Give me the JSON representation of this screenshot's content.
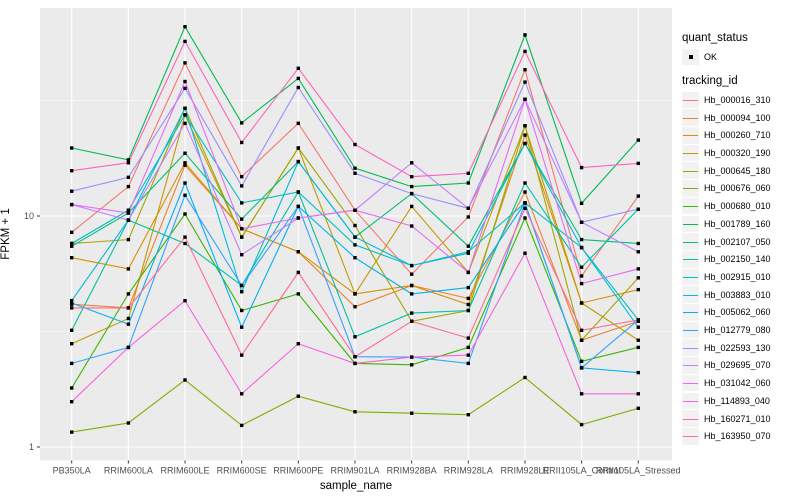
{
  "window": {
    "kind": "ggplot-line-chart"
  },
  "axes": {
    "x_title": "sample_name",
    "y_title": "FPKM + 1",
    "y_tick_labels": [
      "10",
      "1"
    ]
  },
  "legend": {
    "quant_status_title": "quant_status",
    "quant_status_items": [
      {
        "label": "OK",
        "marker": "black-square"
      }
    ],
    "tracking_title": "tracking_id"
  },
  "colors": {
    "panel_bg": "#EBEBEB",
    "grid": "#FFFFFF",
    "tick_mark": "#333333",
    "tick_label": "#4D4D4D",
    "point": "#000000",
    "legend_key_bg": "#F2F2F2"
  },
  "chart_data": {
    "type": "line",
    "xlabel": "sample_name",
    "ylabel": "FPKM + 1",
    "yscale": "log10",
    "ylim": [
      1,
      70
    ],
    "y_major_ticks": [
      10,
      1
    ],
    "y_minor_gridlines": [
      31.62,
      3.162
    ],
    "grid": "on",
    "legend_position": "right",
    "x_categories": [
      "PB350LA",
      "RRIM600LA",
      "RRIM600LE",
      "RRIM600SE",
      "RRIM600PE",
      "RRIM901LA",
      "RRIM928BA",
      "RRIM928LA",
      "RRIM928LE",
      "RRII105LA_Control",
      "RRII105LA_Stressed"
    ],
    "series": [
      {
        "name": "Hb_000016_310",
        "color": "#F8766D",
        "values": [
          8.5,
          13.4,
          46,
          14.8,
          25.2,
          10.6,
          5.6,
          9.9,
          43,
          5.5,
          12.2
        ]
      },
      {
        "name": "Hb_000094_100",
        "color": "#EA8331",
        "values": [
          4.15,
          4.0,
          16.6,
          8.8,
          7.0,
          4.05,
          5.0,
          4.4,
          12.7,
          2.9,
          3.5
        ]
      },
      {
        "name": "Hb_000260_710",
        "color": "#D89000",
        "values": [
          6.6,
          5.9,
          17.0,
          8.8,
          7.0,
          4.6,
          5.0,
          4.14,
          22.4,
          4.2,
          4.8
        ]
      },
      {
        "name": "Hb_000320_190",
        "color": "#C09B00",
        "values": [
          2.8,
          3.6,
          27.4,
          8.1,
          19.7,
          4.6,
          11.0,
          5.7,
          24.6,
          4.2,
          2.9
        ]
      },
      {
        "name": "Hb_000645_180",
        "color": "#A3A500",
        "values": [
          7.6,
          7.9,
          29.3,
          8.1,
          19.7,
          9.1,
          3.5,
          3.9,
          24.6,
          2.9,
          5.4
        ]
      },
      {
        "name": "Hb_000676_060",
        "color": "#7CAE00",
        "values": [
          1.16,
          1.27,
          1.95,
          1.24,
          1.66,
          1.42,
          1.4,
          1.38,
          2.0,
          1.25,
          1.47
        ]
      },
      {
        "name": "Hb_000680_010",
        "color": "#39B600",
        "values": [
          1.8,
          4.6,
          10.2,
          3.9,
          4.6,
          2.3,
          2.27,
          2.7,
          9.8,
          2.35,
          2.7
        ]
      },
      {
        "name": "Hb_001789_160",
        "color": "#00BB4E",
        "values": [
          19.7,
          17.5,
          66,
          25.3,
          39.4,
          16.1,
          13.4,
          13.9,
          60.8,
          11.35,
          21.3
        ]
      },
      {
        "name": "Hb_002107_050",
        "color": "#00BF7D",
        "values": [
          7.4,
          10.3,
          18.7,
          9.7,
          17.2,
          8.1,
          12.5,
          7.4,
          20.6,
          7.9,
          7.6
        ]
      },
      {
        "name": "Hb_002150_140",
        "color": "#00C1A3",
        "values": [
          3.2,
          9.6,
          7.6,
          5.0,
          12.7,
          3.0,
          3.8,
          3.9,
          13.9,
          6.0,
          10.7
        ]
      },
      {
        "name": "Hb_002915_010",
        "color": "#00BFC4",
        "values": [
          7.6,
          10.6,
          27.4,
          11.4,
          12.7,
          7.5,
          6.1,
          7.0,
          11.4,
          7.3,
          3.55
        ]
      },
      {
        "name": "Hb_003883_010",
        "color": "#00BBDA",
        "values": [
          4.3,
          9.6,
          29.3,
          4.7,
          17.2,
          8.1,
          6.1,
          6.9,
          20.6,
          7.3,
          3.3
        ]
      },
      {
        "name": "Hb_005062_060",
        "color": "#00B0F6",
        "values": [
          4.2,
          3.4,
          13.9,
          3.3,
          11.0,
          6.6,
          4.6,
          4.9,
          11.4,
          2.2,
          2.1
        ]
      },
      {
        "name": "Hb_012779_080",
        "color": "#35A2FF",
        "values": [
          2.3,
          2.7,
          12.3,
          5.0,
          11.0,
          2.46,
          2.45,
          2.3,
          11.4,
          2.2,
          3.55
        ]
      },
      {
        "name": "Hb_022593_130",
        "color": "#9590FF",
        "values": [
          12.8,
          14.7,
          35.7,
          13.5,
          36.0,
          15.3,
          12.5,
          10.8,
          38.0,
          9.4,
          10.7
        ]
      },
      {
        "name": "Hb_029695_070",
        "color": "#C77CFF",
        "values": [
          11.2,
          9.6,
          25.2,
          6.8,
          9.8,
          10.6,
          17.0,
          10.8,
          32.0,
          9.4,
          7.0
        ]
      },
      {
        "name": "Hb_031042_060",
        "color": "#E76BF3",
        "values": [
          11.2,
          10.3,
          38.2,
          8.8,
          9.8,
          10.6,
          9.05,
          5.7,
          32.0,
          5.1,
          5.9
        ]
      },
      {
        "name": "Hb_114893_040",
        "color": "#FA62DB",
        "values": [
          1.57,
          2.7,
          4.3,
          1.7,
          2.8,
          2.3,
          2.45,
          2.5,
          6.9,
          1.7,
          1.7
        ]
      },
      {
        "name": "Hb_160271_010",
        "color": "#FF62BC",
        "values": [
          15.7,
          17.0,
          57,
          20.8,
          43.6,
          20.4,
          14.8,
          15.3,
          51.6,
          16.2,
          16.9
        ]
      },
      {
        "name": "Hb_163950_070",
        "color": "#FF6A98",
        "values": [
          4.0,
          4.0,
          8.1,
          2.5,
          5.7,
          2.46,
          3.5,
          2.96,
          10.8,
          3.2,
          3.55
        ]
      }
    ]
  }
}
